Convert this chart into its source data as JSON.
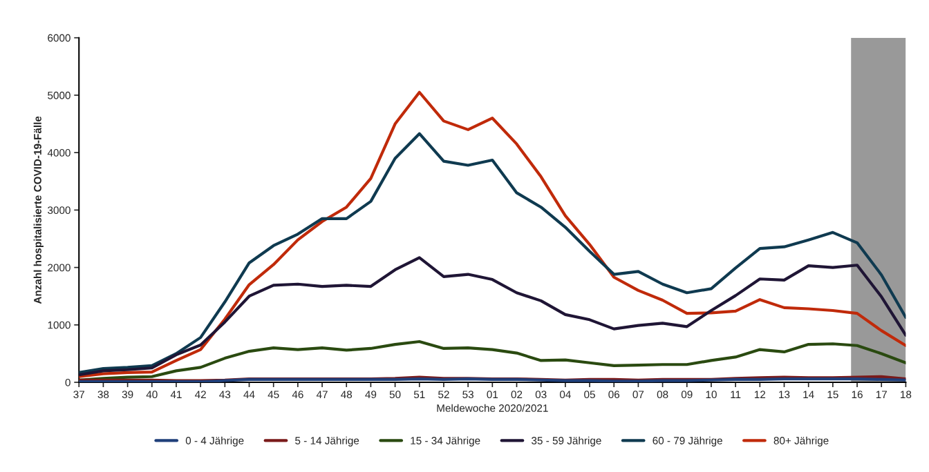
{
  "chart_data": {
    "type": "line",
    "xlabel": "Meldewoche 2020/2021",
    "ylabel": "Anzahl hospitalisierte COVID-19-Fälle",
    "categories": [
      "37",
      "38",
      "39",
      "40",
      "41",
      "42",
      "43",
      "44",
      "45",
      "46",
      "47",
      "48",
      "49",
      "50",
      "51",
      "52",
      "53",
      "01",
      "02",
      "03",
      "04",
      "05",
      "06",
      "07",
      "08",
      "09",
      "10",
      "11",
      "12",
      "13",
      "14",
      "15",
      "16",
      "17",
      "18"
    ],
    "ylim": [
      0,
      6000
    ],
    "yticks": [
      0,
      1000,
      2000,
      3000,
      4000,
      5000,
      6000
    ],
    "grid": false,
    "legend": "bottom",
    "marker": "none",
    "line_style": "solid",
    "bands": [
      {
        "axis": "x",
        "from": "16",
        "to": "18",
        "color": "#999999"
      }
    ],
    "series": [
      {
        "name": "0 - 4 Jährige",
        "color": "#1f3f7a",
        "values": [
          10,
          10,
          10,
          10,
          10,
          10,
          30,
          50,
          50,
          50,
          50,
          50,
          50,
          50,
          60,
          50,
          60,
          50,
          50,
          40,
          30,
          30,
          20,
          20,
          30,
          30,
          40,
          50,
          50,
          60,
          60,
          60,
          60,
          50,
          40
        ]
      },
      {
        "name": "5 - 14 Jährige",
        "color": "#7a1a1a",
        "values": [
          40,
          40,
          40,
          40,
          30,
          30,
          40,
          60,
          60,
          60,
          60,
          60,
          60,
          70,
          90,
          70,
          70,
          60,
          60,
          50,
          40,
          50,
          50,
          40,
          50,
          50,
          50,
          70,
          80,
          90,
          80,
          80,
          90,
          100,
          60
        ]
      },
      {
        "name": "15 - 34 Jährige",
        "color": "#2a4a10",
        "values": [
          40,
          70,
          90,
          100,
          200,
          260,
          420,
          540,
          600,
          570,
          600,
          560,
          590,
          660,
          710,
          590,
          600,
          570,
          510,
          380,
          390,
          340,
          290,
          300,
          310,
          310,
          380,
          440,
          570,
          530,
          660,
          670,
          640,
          500,
          340
        ]
      },
      {
        "name": "35 - 59 Jährige",
        "color": "#1f1535",
        "values": [
          130,
          200,
          220,
          250,
          480,
          650,
          1050,
          1500,
          1690,
          1710,
          1670,
          1690,
          1670,
          1960,
          2170,
          1840,
          1880,
          1790,
          1560,
          1420,
          1180,
          1090,
          930,
          990,
          1030,
          970,
          1250,
          1510,
          1800,
          1780,
          2030,
          2000,
          2040,
          1490,
          820
        ]
      },
      {
        "name": "60 - 79 Jährige",
        "color": "#0f3a50",
        "values": [
          170,
          240,
          260,
          290,
          500,
          780,
          1400,
          2080,
          2380,
          2580,
          2850,
          2850,
          3150,
          3900,
          4330,
          3850,
          3780,
          3870,
          3300,
          3050,
          2700,
          2280,
          1880,
          1930,
          1710,
          1560,
          1630,
          1990,
          2330,
          2360,
          2480,
          2610,
          2430,
          1870,
          1130
        ]
      },
      {
        "name": "80+ Jährige",
        "color": "#c02a0a",
        "values": [
          100,
          150,
          170,
          180,
          380,
          570,
          1100,
          1700,
          2050,
          2480,
          2800,
          3050,
          3550,
          4500,
          5050,
          4550,
          4400,
          4600,
          4150,
          3580,
          2900,
          2400,
          1830,
          1600,
          1430,
          1200,
          1210,
          1240,
          1440,
          1300,
          1280,
          1250,
          1200,
          900,
          640
        ]
      }
    ]
  }
}
